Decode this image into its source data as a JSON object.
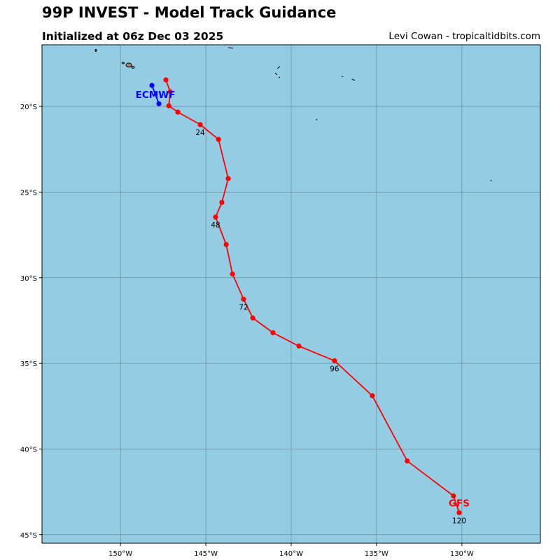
{
  "header": {
    "title": "99P INVEST - Model Track Guidance",
    "subtitle": "Initialized at 06z Dec 03 2025",
    "credit": "Levi Cowan - tropicaltidbits.com"
  },
  "map": {
    "ocean_color": "#94cde3",
    "grid_color": "#6b8fa0",
    "lon_range": [
      -154.6,
      -125.4
    ],
    "lat_range": [
      -45.5,
      -16.4
    ],
    "lon_ticks": [
      {
        "v": -150,
        "label": "150°W"
      },
      {
        "v": -145,
        "label": "145°W"
      },
      {
        "v": -140,
        "label": "140°W"
      },
      {
        "v": -135,
        "label": "135°W"
      },
      {
        "v": -130,
        "label": "130°W"
      }
    ],
    "lat_ticks": [
      {
        "v": -20,
        "label": "20°S"
      },
      {
        "v": -25,
        "label": "25°S"
      },
      {
        "v": -30,
        "label": "30°S"
      },
      {
        "v": -35,
        "label": "35°S"
      },
      {
        "v": -40,
        "label": "40°S"
      },
      {
        "v": -45,
        "label": "45°S"
      }
    ]
  },
  "models": [
    {
      "name": "GFS",
      "color": "#ff0000",
      "points": [
        [
          -147.34,
          -18.45
        ],
        [
          -147.09,
          -19.14
        ],
        [
          -147.17,
          -19.96
        ],
        [
          -146.64,
          -20.33
        ],
        [
          -145.33,
          -21.06
        ],
        [
          -144.26,
          -21.92
        ],
        [
          -143.69,
          -24.21
        ],
        [
          -144.06,
          -25.6
        ],
        [
          -144.43,
          -26.46
        ],
        [
          -143.81,
          -28.06
        ],
        [
          -143.44,
          -29.78
        ],
        [
          -142.79,
          -31.25
        ],
        [
          -142.25,
          -32.35
        ],
        [
          -141.07,
          -33.21
        ],
        [
          -139.55,
          -33.99
        ],
        [
          -137.46,
          -34.85
        ],
        [
          -135.25,
          -36.89
        ],
        [
          -133.2,
          -40.7
        ],
        [
          -130.49,
          -42.74
        ],
        [
          -130.16,
          -43.72
        ]
      ],
      "hour_labels": [
        {
          "idx": 4,
          "text": "24"
        },
        {
          "idx": 8,
          "text": "48"
        },
        {
          "idx": 11,
          "text": "72"
        },
        {
          "idx": 15,
          "text": "96"
        },
        {
          "idx": 19,
          "text": "120"
        }
      ]
    },
    {
      "name": "ECMWF",
      "color": "#0000ff",
      "points": [
        [
          -148.16,
          -18.77
        ],
        [
          -147.75,
          -19.84
        ]
      ],
      "hour_labels": []
    }
  ]
}
